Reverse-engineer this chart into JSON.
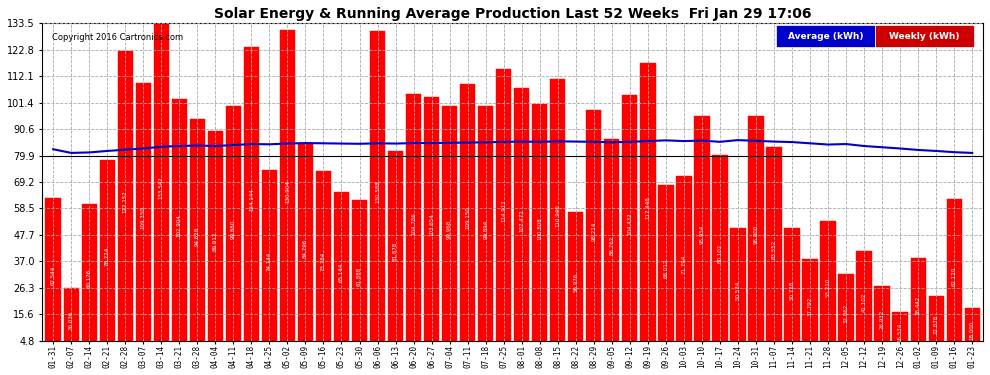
{
  "title": "Solar Energy & Running Average Production Last 52 Weeks  Fri Jan 29 17:06",
  "copyright": "Copyright 2016 Cartronics.com",
  "bar_color": "#ff0000",
  "avg_line_color": "#0000cc",
  "ref_line_color": "#000000",
  "background_color": "#ffffff",
  "plot_bg_color": "#ffffff",
  "grid_color": "#aaaaaa",
  "ylim_min": 4.8,
  "ylim_max": 133.5,
  "yticks": [
    4.8,
    15.6,
    26.3,
    37.0,
    47.7,
    58.5,
    69.2,
    79.9,
    90.6,
    101.4,
    112.1,
    122.8,
    133.5
  ],
  "dates": [
    "01-31",
    "02-07",
    "02-14",
    "02-21",
    "02-28",
    "03-07",
    "03-14",
    "03-21",
    "03-28",
    "04-04",
    "04-11",
    "04-18",
    "04-25",
    "05-02",
    "05-09",
    "05-16",
    "05-23",
    "05-30",
    "06-06",
    "06-13",
    "06-20",
    "06-27",
    "07-04",
    "07-11",
    "07-18",
    "07-25",
    "08-01",
    "08-08",
    "08-15",
    "08-22",
    "08-29",
    "09-05",
    "09-12",
    "09-19",
    "09-26",
    "10-03",
    "10-10",
    "10-17",
    "10-24",
    "10-31",
    "11-07",
    "11-14",
    "11-21",
    "11-28",
    "12-05",
    "12-12",
    "12-19",
    "12-26",
    "01-02",
    "01-09",
    "01-16",
    "01-23"
  ],
  "weekly_values": [
    62.544,
    26.036,
    60.176,
    78.224,
    122.152,
    109.35,
    133.542,
    102.904,
    94.628,
    89.912,
    99.88,
    124.144,
    74.144,
    130.904,
    84.796,
    73.784,
    65.144,
    61.888,
    130.588,
    81.878,
    104.786,
    103.654,
    99.968,
    109.15,
    99.894,
    114.912,
    107.472,
    100.808,
    110.94,
    56.976,
    98.214,
    86.762,
    104.432,
    117.448,
    68.012,
    71.794,
    95.954,
    80.102,
    50.574,
    96.0,
    83.552,
    50.728,
    37.792,
    53.21,
    32.062,
    41.102,
    26.932,
    16.534,
    38.442,
    22.878,
    62.12,
    18.0
  ],
  "avg_values": [
    82.5,
    81.0,
    81.2,
    81.8,
    82.3,
    82.8,
    83.5,
    83.8,
    84.0,
    83.8,
    84.2,
    84.6,
    84.5,
    84.8,
    85.0,
    84.9,
    84.8,
    84.7,
    84.9,
    84.8,
    85.0,
    85.0,
    85.1,
    85.2,
    85.3,
    85.5,
    85.6,
    85.5,
    85.7,
    85.6,
    85.5,
    85.3,
    85.5,
    85.8,
    86.1,
    85.8,
    86.0,
    85.5,
    86.2,
    85.9,
    85.6,
    85.4,
    84.9,
    84.4,
    84.6,
    83.8,
    83.3,
    82.8,
    82.2,
    81.8,
    81.3,
    81.0
  ],
  "ref_line_y": 79.9,
  "legend_avg_bg": "#0000cc",
  "legend_weekly_bg": "#cc0000",
  "legend_avg_label": "Average (kWh)",
  "legend_weekly_label": "Weekly (kWh)"
}
